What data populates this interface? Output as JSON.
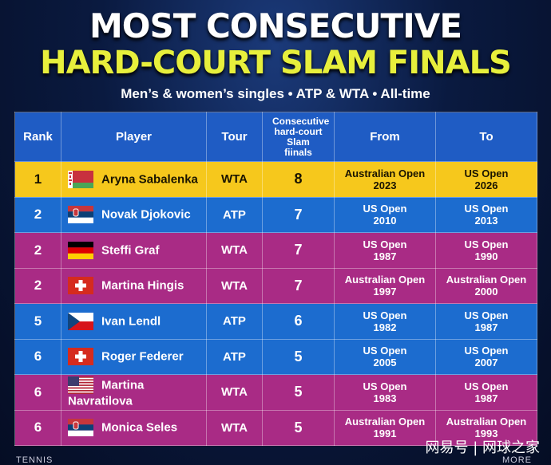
{
  "header": {
    "title_line1": "MOST CONSECUTIVE",
    "title_line2": "HARD-COURT SLAM FINALS",
    "subtitle": "Men’s & women’s singles • ATP & WTA • All-time"
  },
  "table": {
    "columns": [
      "Rank",
      "Player",
      "Tour",
      "Consecutive hard-court Slam fiinals",
      "From",
      "To"
    ],
    "rows": [
      {
        "rank": 1,
        "player": "Aryna Sabalenka",
        "tour": "WTA",
        "finals": 8,
        "from": {
          "event": "Australian Open",
          "year": 2023
        },
        "to": {
          "event": "US Open",
          "year": 2026
        }
      },
      {
        "rank": 2,
        "player": "Novak Djokovic",
        "tour": "ATP",
        "finals": 7,
        "from": {
          "event": "US Open",
          "year": 2010
        },
        "to": {
          "event": "US Open",
          "year": 2013
        }
      },
      {
        "rank": 2,
        "player": "Steffi Graf",
        "tour": "WTA",
        "finals": 7,
        "from": {
          "event": "US Open",
          "year": 1987
        },
        "to": {
          "event": "US Open",
          "year": 1990
        }
      },
      {
        "rank": 2,
        "player": "Martina Hingis",
        "tour": "WTA",
        "finals": 7,
        "from": {
          "event": "Australian Open",
          "year": 1997
        },
        "to": {
          "event": "Australian Open",
          "year": 2000
        }
      },
      {
        "rank": 5,
        "player": "Ivan Lendl",
        "tour": "ATP",
        "finals": 6,
        "from": {
          "event": "US Open",
          "year": 1982
        },
        "to": {
          "event": "US Open",
          "year": 1987
        }
      },
      {
        "rank": 6,
        "player": "Roger Federer",
        "tour": "ATP",
        "finals": 5,
        "from": {
          "event": "US Open",
          "year": 2005
        },
        "to": {
          "event": "US Open",
          "year": 2007
        }
      },
      {
        "rank": 6,
        "player": "Martina Navratilova",
        "tour": "WTA",
        "finals": 5,
        "from": {
          "event": "US Open",
          "year": 1983
        },
        "to": {
          "event": "US Open",
          "year": 1987
        }
      },
      {
        "rank": 6,
        "player": "Monica Seles",
        "tour": "WTA",
        "finals": 5,
        "from": {
          "event": "Australian Open",
          "year": 1991
        },
        "to": {
          "event": "Australian Open",
          "year": 1993
        }
      }
    ]
  },
  "footer": {
    "left": "TENNIS",
    "right": "MORE",
    "watermark": "网易号 | 网球之家"
  }
}
